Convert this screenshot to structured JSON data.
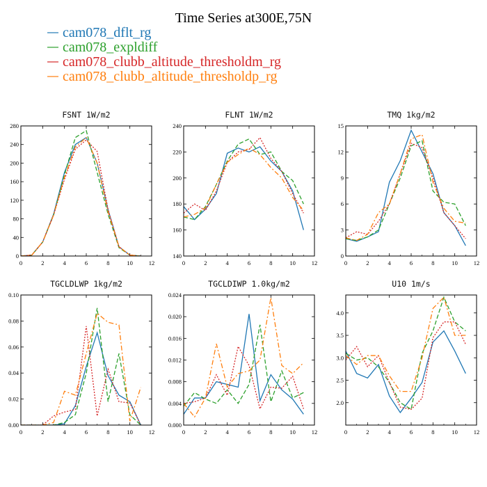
{
  "figure": {
    "title": "Time Series at300E,75N"
  },
  "chart_data": [
    {
      "type": "line",
      "title": "FSNT  1W/m2",
      "xlim": [
        0,
        12
      ],
      "ylim": [
        0,
        280
      ],
      "xticks": [
        0,
        2,
        4,
        6,
        8,
        10,
        12
      ],
      "yticks": [
        0,
        40,
        80,
        120,
        160,
        200,
        240,
        280
      ],
      "x": [
        0,
        1,
        2,
        3,
        4,
        5,
        6,
        7,
        8,
        9,
        10,
        11
      ],
      "series": [
        {
          "name": "cam078_dflt_rg",
          "color": "#1f77b4",
          "dash": "solid",
          "values": [
            0,
            2,
            30,
            90,
            180,
            240,
            255,
            200,
            100,
            20,
            2,
            0
          ]
        },
        {
          "name": "cam078_expldiff",
          "color": "#2ca02c",
          "dash": "dashed",
          "values": [
            0,
            2,
            30,
            88,
            175,
            255,
            270,
            180,
            90,
            18,
            2,
            0
          ]
        },
        {
          "name": "cam078_clubb_altitude_thresholdm_rg",
          "color": "#d62728",
          "dash": "dotted",
          "values": [
            0,
            2,
            30,
            88,
            165,
            230,
            250,
            225,
            100,
            20,
            2,
            0
          ]
        },
        {
          "name": "cam078_clubb_altitude_thresholdp_rg",
          "color": "#ff7f0e",
          "dash": "dashdot",
          "values": [
            0,
            2,
            30,
            88,
            170,
            235,
            255,
            200,
            95,
            20,
            2,
            0
          ]
        }
      ]
    },
    {
      "type": "line",
      "title": "FLNT  1W/m2",
      "xlim": [
        0,
        12
      ],
      "ylim": [
        140,
        240
      ],
      "xticks": [
        0,
        2,
        4,
        6,
        8,
        10,
        12
      ],
      "yticks": [
        140,
        160,
        180,
        200,
        220,
        240
      ],
      "x": [
        0,
        1,
        2,
        3,
        4,
        5,
        6,
        7,
        8,
        9,
        10,
        11
      ],
      "series": [
        {
          "name": "cam078_dflt_rg",
          "color": "#1f77b4",
          "dash": "solid",
          "values": [
            178,
            168,
            176,
            188,
            219,
            223,
            220,
            224,
            213,
            205,
            190,
            160
          ]
        },
        {
          "name": "cam078_expldiff",
          "color": "#2ca02c",
          "dash": "dashed",
          "values": [
            170,
            168,
            178,
            195,
            213,
            226,
            230,
            218,
            220,
            205,
            198,
            180
          ]
        },
        {
          "name": "cam078_clubb_altitude_thresholdm_rg",
          "color": "#d62728",
          "dash": "dotted",
          "values": [
            173,
            180,
            175,
            190,
            212,
            220,
            222,
            231,
            215,
            205,
            188,
            173
          ]
        },
        {
          "name": "cam078_clubb_altitude_thresholdp_rg",
          "color": "#ff7f0e",
          "dash": "dashdot",
          "values": [
            170,
            172,
            177,
            195,
            212,
            218,
            223,
            218,
            208,
            200,
            185,
            175
          ]
        }
      ]
    },
    {
      "type": "line",
      "title": "TMQ  1kg/m2",
      "xlim": [
        0,
        12
      ],
      "ylim": [
        0,
        15
      ],
      "xticks": [
        0,
        2,
        4,
        6,
        8,
        10,
        12
      ],
      "yticks": [
        0,
        3,
        6,
        9,
        12,
        15
      ],
      "x": [
        0,
        1,
        2,
        3,
        4,
        5,
        6,
        7,
        8,
        9,
        10,
        11
      ],
      "series": [
        {
          "name": "cam078_dflt_rg",
          "color": "#1f77b4",
          "dash": "solid",
          "values": [
            2,
            1.7,
            2.2,
            2.8,
            8.5,
            11,
            14.5,
            12,
            9.5,
            5,
            3.5,
            1.2
          ]
        },
        {
          "name": "cam078_expldiff",
          "color": "#2ca02c",
          "dash": "dashed",
          "values": [
            2,
            1.8,
            2.2,
            3,
            6,
            9,
            12.7,
            13.3,
            7.5,
            6.2,
            6,
            3.5
          ]
        },
        {
          "name": "cam078_clubb_altitude_thresholdm_rg",
          "color": "#d62728",
          "dash": "dotted",
          "values": [
            2.1,
            2.8,
            2.5,
            4,
            6,
            9.5,
            13,
            12.5,
            9,
            5,
            3.5,
            2
          ]
        },
        {
          "name": "cam078_clubb_altitude_thresholdp_rg",
          "color": "#ff7f0e",
          "dash": "dashdot",
          "values": [
            2.1,
            1.8,
            2.5,
            5,
            6,
            9.5,
            13.5,
            14,
            8.5,
            5.5,
            4,
            3.8
          ]
        }
      ]
    },
    {
      "type": "line",
      "title": "TGCLDLWP  1kg/m2",
      "xlim": [
        0,
        12
      ],
      "ylim": [
        0,
        0.1
      ],
      "xticks": [
        0,
        2,
        4,
        6,
        8,
        10,
        12
      ],
      "yticks": [
        0,
        0.02,
        0.04,
        0.06,
        0.08,
        0.1
      ],
      "ytick_labels": [
        "0.00",
        "0.02",
        "0.04",
        "0.06",
        "0.08",
        "0.10"
      ],
      "x": [
        0,
        1,
        2,
        3,
        4,
        5,
        6,
        7,
        8,
        9,
        10,
        11
      ],
      "series": [
        {
          "name": "cam078_dflt_rg",
          "color": "#1f77b4",
          "dash": "solid",
          "values": [
            0,
            0,
            0,
            0,
            0.001,
            0.015,
            0.045,
            0.071,
            0.038,
            0.023,
            0.018,
            0
          ]
        },
        {
          "name": "cam078_expldiff",
          "color": "#2ca02c",
          "dash": "dashed",
          "values": [
            0,
            0,
            0,
            0,
            0.002,
            0.008,
            0.04,
            0.09,
            0.018,
            0.055,
            0.008,
            0
          ]
        },
        {
          "name": "cam078_clubb_altitude_thresholdm_rg",
          "color": "#d62728",
          "dash": "dotted",
          "values": [
            0,
            0,
            0,
            0.007,
            0.01,
            0.012,
            0.076,
            0.007,
            0.043,
            0.018,
            0.017,
            0
          ]
        },
        {
          "name": "cam078_clubb_altitude_thresholdp_rg",
          "color": "#ff7f0e",
          "dash": "dashdot",
          "values": [
            0,
            0,
            0,
            0.002,
            0.026,
            0.023,
            0.055,
            0.086,
            0.079,
            0.077,
            0.003,
            0.029
          ]
        }
      ]
    },
    {
      "type": "line",
      "title": "TGCLDIWP  1.0kg/m2",
      "xlim": [
        0,
        12
      ],
      "ylim": [
        0,
        0.024
      ],
      "xticks": [
        0,
        2,
        4,
        6,
        8,
        10,
        12
      ],
      "yticks": [
        0,
        0.004,
        0.008,
        0.012,
        0.016,
        0.02,
        0.024
      ],
      "ytick_labels": [
        "0.000",
        "0.004",
        "0.008",
        "0.012",
        "0.016",
        "0.020",
        "0.024"
      ],
      "x": [
        0,
        1,
        2,
        3,
        4,
        5,
        6,
        7,
        8,
        9,
        10,
        11
      ],
      "series": [
        {
          "name": "cam078_dflt_rg",
          "color": "#1f77b4",
          "dash": "solid",
          "values": [
            0.002,
            0.005,
            0.005,
            0.008,
            0.0075,
            0.007,
            0.0205,
            0.0045,
            0.0093,
            0.0065,
            0.0048,
            0.002
          ]
        },
        {
          "name": "cam078_expldiff",
          "color": "#2ca02c",
          "dash": "dashed",
          "values": [
            0.0035,
            0.006,
            0.0048,
            0.004,
            0.0065,
            0.004,
            0.0075,
            0.0185,
            0.0043,
            0.01,
            0.005,
            0.006
          ]
        },
        {
          "name": "cam078_clubb_altitude_thresholdm_rg",
          "color": "#d62728",
          "dash": "dotted",
          "values": [
            0.004,
            0.0043,
            0.005,
            0.0093,
            0.0055,
            0.0145,
            0.011,
            0.003,
            0.007,
            0.0068,
            0.009,
            0.003
          ]
        },
        {
          "name": "cam078_clubb_altitude_thresholdp_rg",
          "color": "#ff7f0e",
          "dash": "dashdot",
          "values": [
            0.004,
            0.0015,
            0.005,
            0.015,
            0.007,
            0.0095,
            0.01,
            0.012,
            0.0235,
            0.011,
            0.0095,
            0.0115
          ]
        }
      ]
    },
    {
      "type": "line",
      "title": "U10  1m/s",
      "xlim": [
        0,
        12
      ],
      "ylim": [
        1.5,
        4.4
      ],
      "xticks": [
        0,
        2,
        4,
        6,
        8,
        10,
        12
      ],
      "yticks": [
        2.0,
        2.5,
        3.0,
        3.5,
        4.0
      ],
      "ytick_labels": [
        "2.0",
        "2.5",
        "3.0",
        "3.5",
        "4.0"
      ],
      "x": [
        0,
        1,
        2,
        3,
        4,
        5,
        6,
        7,
        8,
        9,
        10,
        11
      ],
      "series": [
        {
          "name": "cam078_dflt_rg",
          "color": "#1f77b4",
          "dash": "solid",
          "values": [
            3.15,
            2.65,
            2.55,
            2.85,
            2.15,
            1.78,
            2.1,
            2.45,
            3.35,
            3.6,
            3.15,
            2.65
          ]
        },
        {
          "name": "cam078_expldiff",
          "color": "#2ca02c",
          "dash": "dashed",
          "values": [
            3.1,
            2.95,
            3.0,
            2.8,
            2.45,
            2.0,
            1.85,
            3.1,
            3.6,
            4.35,
            3.8,
            3.6
          ]
        },
        {
          "name": "cam078_clubb_altitude_thresholdm_rg",
          "color": "#d62728",
          "dash": "dotted",
          "values": [
            2.95,
            3.25,
            2.8,
            3.05,
            2.45,
            1.9,
            1.85,
            2.1,
            3.45,
            3.8,
            3.8,
            3.3
          ]
        },
        {
          "name": "cam078_clubb_altitude_thresholdp_rg",
          "color": "#ff7f0e",
          "dash": "dashdot",
          "values": [
            3.05,
            2.85,
            3.05,
            3.05,
            2.6,
            2.25,
            2.25,
            3.0,
            4.1,
            4.35,
            3.5,
            3.5
          ]
        }
      ]
    }
  ]
}
